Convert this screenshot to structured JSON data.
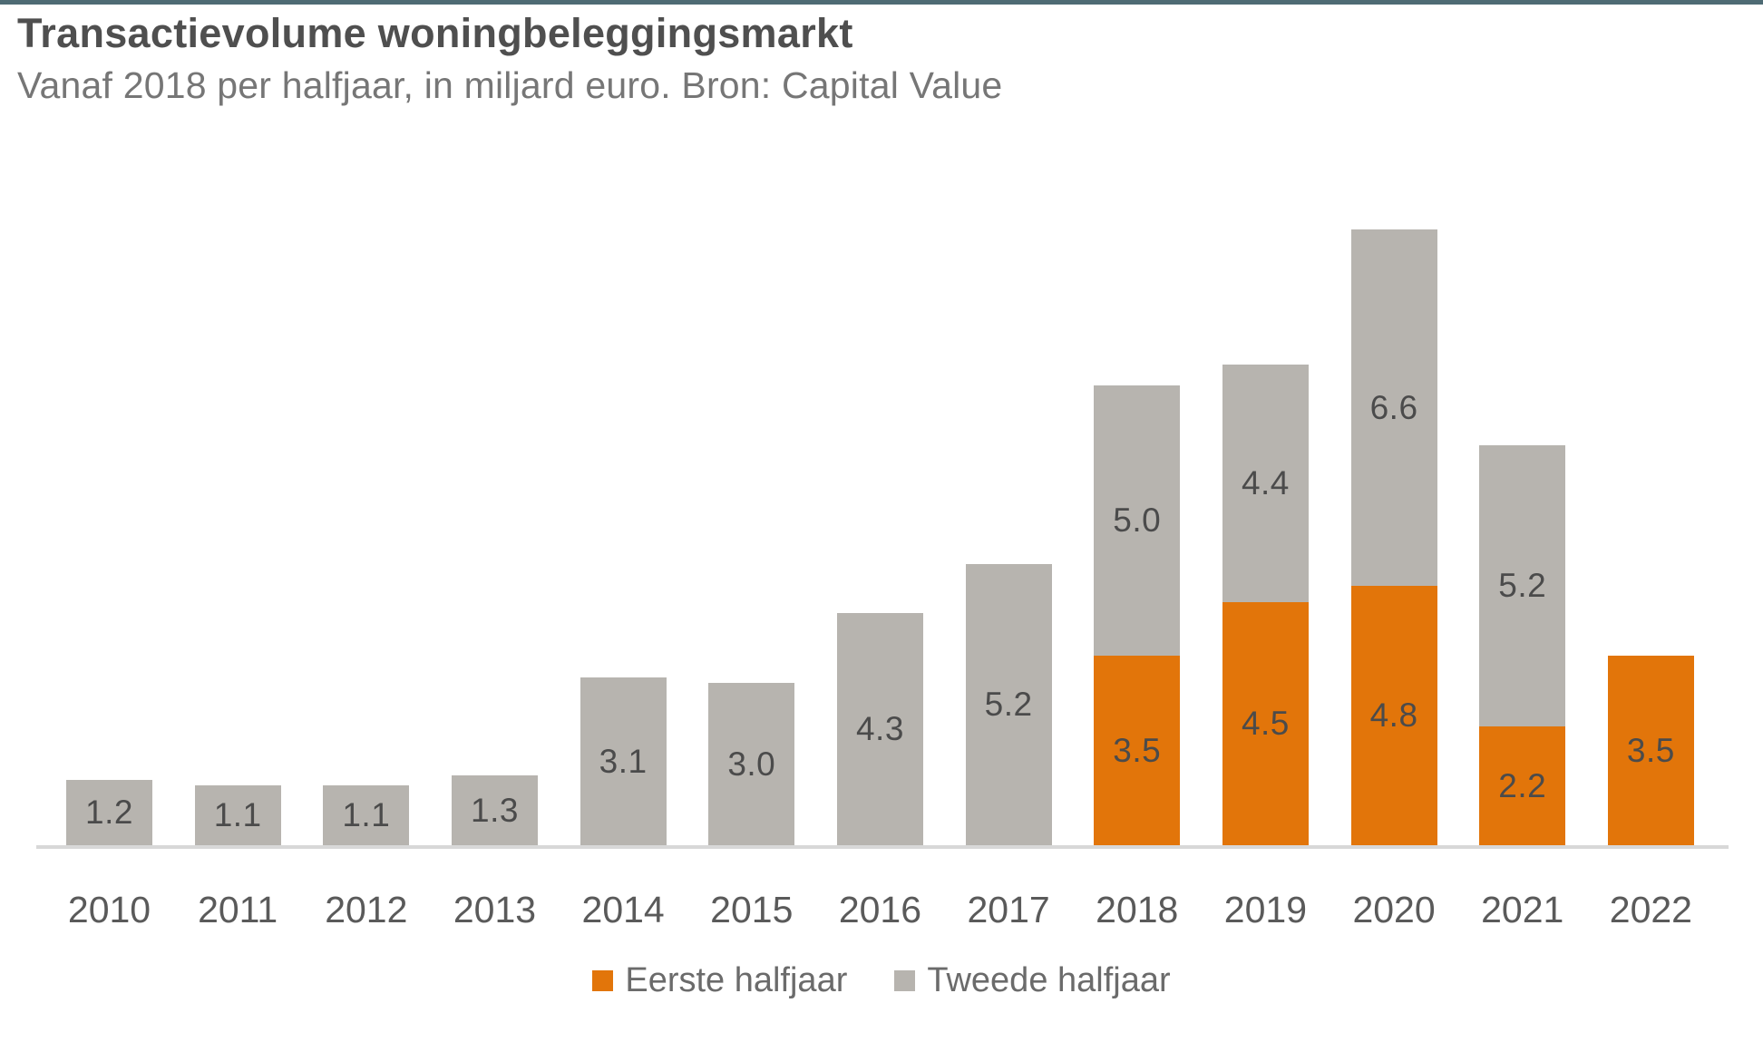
{
  "page": {
    "title": "Transactievolume woningbeleggingsmarkt",
    "subtitle": "Vanaf 2018 per halfjaar, in miljard euro. Bron: Capital Value"
  },
  "colors": {
    "top_accent": "#4e6b74",
    "first_half_orange": "#e2750a",
    "second_half_gray": "#b7b4af",
    "axis_line": "#d8d8d8",
    "bar_label_text": "#4b4b4b",
    "year_label_text": "#5a5a5a",
    "legend_text": "#6b6b6b"
  },
  "legend": [
    {
      "label": "Eerste halfjaar",
      "color": "#e2750a"
    },
    {
      "label": "Tweede halfjaar",
      "color": "#b7b4af"
    }
  ],
  "chart_data": {
    "type": "bar",
    "stacked": true,
    "title": "Transactievolume woningbeleggingsmarkt",
    "subtitle": "Vanaf 2018 per halfjaar, in miljard euro. Bron: Capital Value",
    "unit": "miljard euro",
    "categories": [
      "2010",
      "2011",
      "2012",
      "2013",
      "2014",
      "2015",
      "2016",
      "2017",
      "2018",
      "2019",
      "2020",
      "2021",
      "2022"
    ],
    "series": [
      {
        "name": "Eerste halfjaar",
        "color": "#e2750a",
        "values": [
          0,
          0,
          0,
          0,
          0,
          0,
          0,
          0,
          3.5,
          4.5,
          4.8,
          2.2,
          3.5
        ],
        "labels": [
          "",
          "",
          "",
          "",
          "",
          "",
          "",
          "",
          "3.5",
          "4.5",
          "4.8",
          "2.2",
          "3.5"
        ]
      },
      {
        "name": "Tweede halfjaar",
        "color": "#b7b4af",
        "values": [
          1.2,
          1.1,
          1.1,
          1.3,
          3.1,
          3.0,
          4.3,
          5.2,
          5.0,
          4.4,
          6.6,
          5.2,
          0
        ],
        "labels": [
          "1.2",
          "1.1",
          "1.1",
          "1.3",
          "3.1",
          "3.0",
          "4.3",
          "5.2",
          "5.0",
          "4.4",
          "6.6",
          "5.2",
          ""
        ]
      }
    ],
    "totals": [
      1.2,
      1.1,
      1.1,
      1.3,
      3.1,
      3.0,
      4.3,
      5.2,
      8.5,
      8.9,
      11.4,
      7.4,
      3.5
    ],
    "ylim": [
      0,
      11.4
    ],
    "grid": false,
    "legend_position": "bottom",
    "value_labels": "centered-in-segment"
  }
}
